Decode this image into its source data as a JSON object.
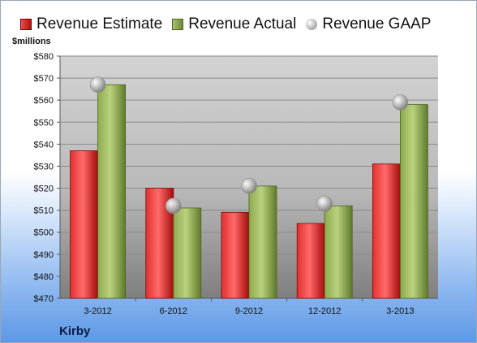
{
  "legend": {
    "estimate": "Revenue Estimate",
    "actual": "Revenue Actual",
    "gaap": "Revenue GAAP"
  },
  "unit_label": "$millions",
  "footer_label": "Kirby",
  "chart_data": {
    "type": "bar",
    "categories": [
      "3-2012",
      "6-2012",
      "9-2012",
      "12-2012",
      "3-2013"
    ],
    "series": [
      {
        "name": "Revenue Estimate",
        "values": [
          537,
          520,
          509,
          504,
          531
        ]
      },
      {
        "name": "Revenue Actual",
        "values": [
          567,
          511,
          521,
          512,
          558
        ]
      },
      {
        "name": "Revenue GAAP",
        "values": [
          567,
          512,
          521,
          513,
          559
        ]
      }
    ],
    "ylim": [
      470,
      580
    ],
    "yticks": [
      "$470",
      "$480",
      "$490",
      "$500",
      "$510",
      "$520",
      "$530",
      "$540",
      "$550",
      "$560",
      "$570",
      "$580"
    ],
    "ylabel": "$millions",
    "title": "Kirby",
    "grid": true,
    "legend_position": "top"
  }
}
